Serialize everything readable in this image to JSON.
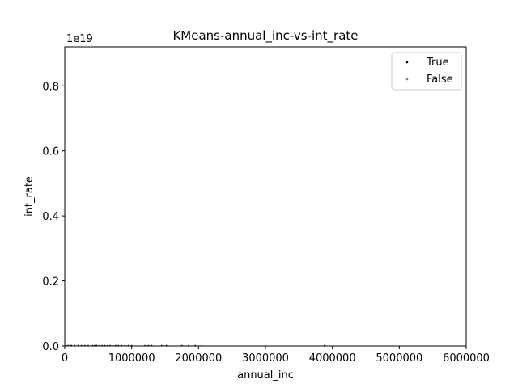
{
  "chart_data": {
    "type": "scatter",
    "title": "KMeans-annual_inc-vs-int_rate",
    "xlabel": "annual_inc",
    "ylabel": "int_rate",
    "y_offset_label": "1e19",
    "xlim": [
      0,
      6000000
    ],
    "ylim": [
      0,
      9.2e+18
    ],
    "x_ticks": [
      0,
      1000000,
      2000000,
      3000000,
      4000000,
      5000000,
      6000000
    ],
    "x_tick_labels": [
      "0",
      "1000000",
      "2000000",
      "3000000",
      "4000000",
      "5000000",
      "6000000"
    ],
    "y_ticks": [
      0,
      2e+18,
      4e+18,
      6e+18,
      8e+18
    ],
    "y_tick_labels": [
      "0.0",
      "0.2",
      "0.4",
      "0.6",
      "0.8"
    ],
    "grid": false,
    "legend_position": "top-right",
    "series": [
      {
        "name": "True",
        "color": "#000000",
        "points": [
          [
            20000,
            0
          ],
          [
            40000,
            0
          ],
          [
            60000,
            0
          ],
          [
            80000,
            0
          ],
          [
            100000,
            0
          ],
          [
            150000,
            0
          ],
          [
            200000,
            0
          ],
          [
            250000,
            0
          ],
          [
            300000,
            0
          ],
          [
            350000,
            0
          ],
          [
            420000,
            0
          ],
          [
            450000,
            0
          ],
          [
            480000,
            0
          ],
          [
            520000,
            0
          ],
          [
            560000,
            0
          ],
          [
            600000,
            0
          ],
          [
            640000,
            0
          ],
          [
            680000,
            0
          ],
          [
            720000,
            0
          ],
          [
            760000,
            0
          ],
          [
            800000,
            0
          ],
          [
            850000,
            0
          ],
          [
            900000,
            0
          ],
          [
            950000,
            0
          ],
          [
            1000000,
            0
          ],
          [
            1200000,
            0
          ],
          [
            1250000,
            0
          ],
          [
            1300000,
            0
          ],
          [
            1450000,
            0
          ],
          [
            1520000,
            0
          ],
          [
            1750000,
            0
          ],
          [
            1850000,
            0
          ],
          [
            1950000,
            0
          ],
          [
            2050000,
            0
          ],
          [
            3880000,
            0
          ]
        ]
      },
      {
        "name": "False",
        "color": "#7f7f7f",
        "points": [
          [
            30000,
            0
          ],
          [
            70000,
            0
          ],
          [
            120000,
            0
          ],
          [
            180000,
            0
          ],
          [
            230000,
            0
          ],
          [
            280000,
            0
          ],
          [
            330000,
            0
          ],
          [
            380000,
            0
          ],
          [
            500000,
            0
          ],
          [
            700000,
            0
          ],
          [
            1100000,
            0
          ],
          [
            1600000,
            0
          ]
        ]
      }
    ]
  }
}
